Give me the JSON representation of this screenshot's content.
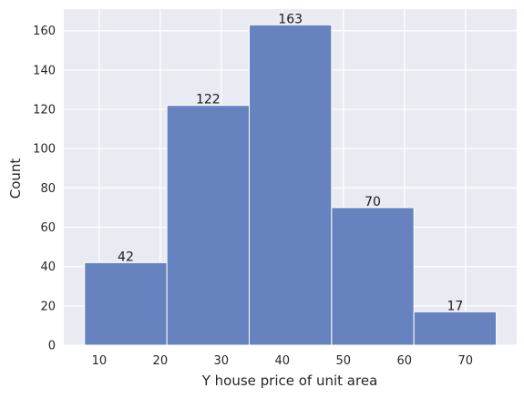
{
  "chart_data": {
    "type": "bar",
    "subtype": "histogram",
    "bin_edges": [
      7.6,
      21.09,
      34.58,
      48.07,
      61.56,
      75.05
    ],
    "values": [
      42,
      122,
      163,
      70,
      17
    ],
    "data_labels": [
      "42",
      "122",
      "163",
      "70",
      "17"
    ],
    "xlabel": "Y house price of unit area",
    "ylabel": "Count",
    "xlim": [
      4.2,
      78.4
    ],
    "ylim": [
      0,
      171
    ],
    "xticks": [
      10,
      20,
      30,
      40,
      50,
      60,
      70
    ],
    "yticks": [
      0,
      20,
      40,
      60,
      80,
      100,
      120,
      140,
      160
    ],
    "grid": true,
    "colors": {
      "background": "#eaeaf2",
      "grid": "#ffffff",
      "bar_fill": "#6683bf",
      "bar_edge": "#ffffff"
    }
  }
}
